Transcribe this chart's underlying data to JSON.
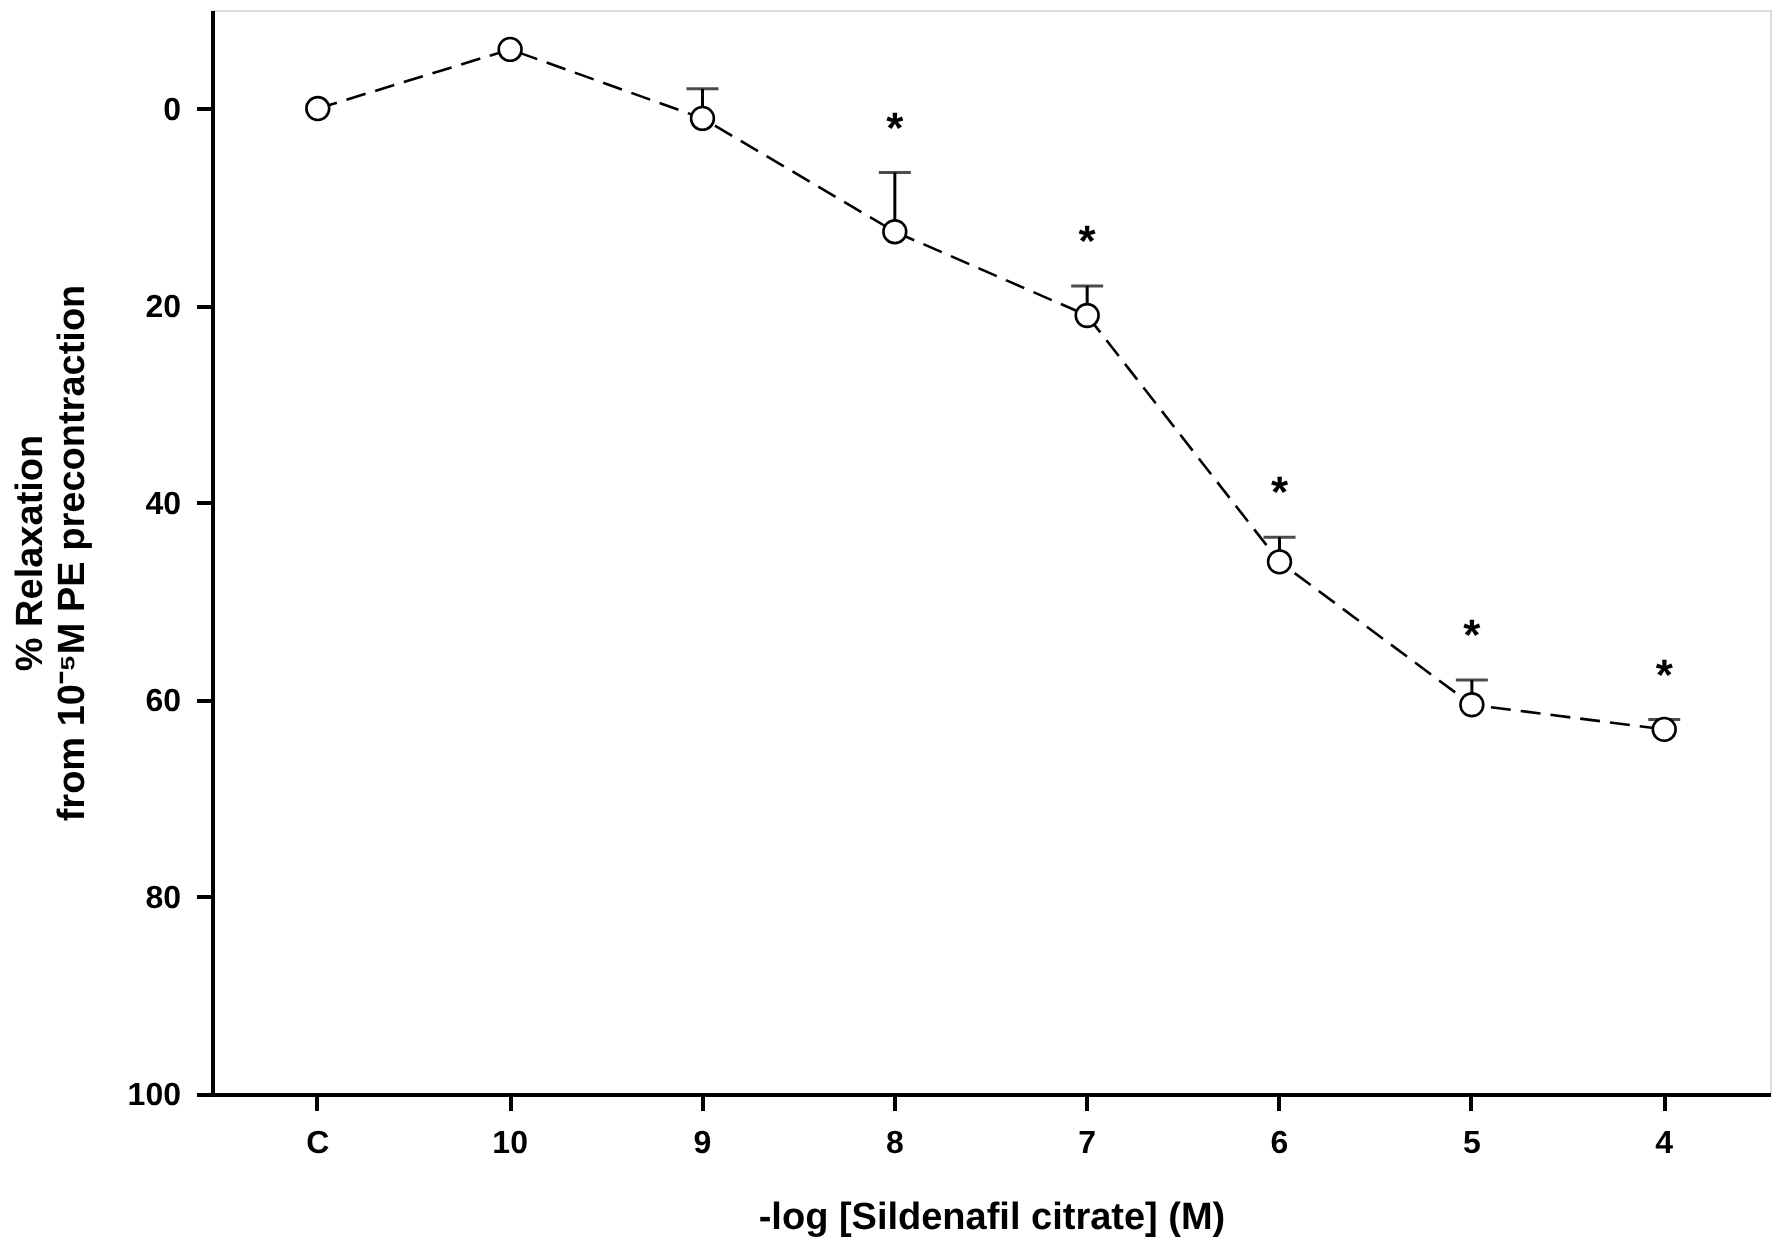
{
  "chart_data": {
    "type": "line",
    "xlabel": "-log [Sildenafil citrate] (M)",
    "ylabel": "% Relaxation\nfrom 10⁻⁵M PE precontraction",
    "categories": [
      "C",
      "10",
      "9",
      "8",
      "7",
      "6",
      "5",
      "4"
    ],
    "series": [
      {
        "color": "#000000",
        "values": [
          0,
          -6,
          1,
          12.5,
          21,
          46,
          60.5,
          63
        ],
        "errors": [
          null,
          null,
          [
            -2,
            1
          ],
          [
            6.5,
            12.5
          ],
          [
            18,
            21
          ],
          [
            43.5,
            46
          ],
          [
            58,
            60.5
          ],
          [
            62,
            63
          ]
        ]
      }
    ],
    "ylim": [
      100,
      -10
    ],
    "yticks": [
      0,
      20,
      40,
      60,
      80,
      100
    ],
    "grid": false,
    "marker": "circle",
    "line_style": "dashed",
    "annotations": [
      {
        "text": "*",
        "x": "8",
        "y": 6.5
      },
      {
        "text": "*",
        "x": "7",
        "y": 18
      },
      {
        "text": "*",
        "x": "6",
        "y": 43.5
      },
      {
        "text": "*",
        "x": "5",
        "y": 58
      },
      {
        "text": "*",
        "x": "4",
        "y": 62
      }
    ]
  }
}
